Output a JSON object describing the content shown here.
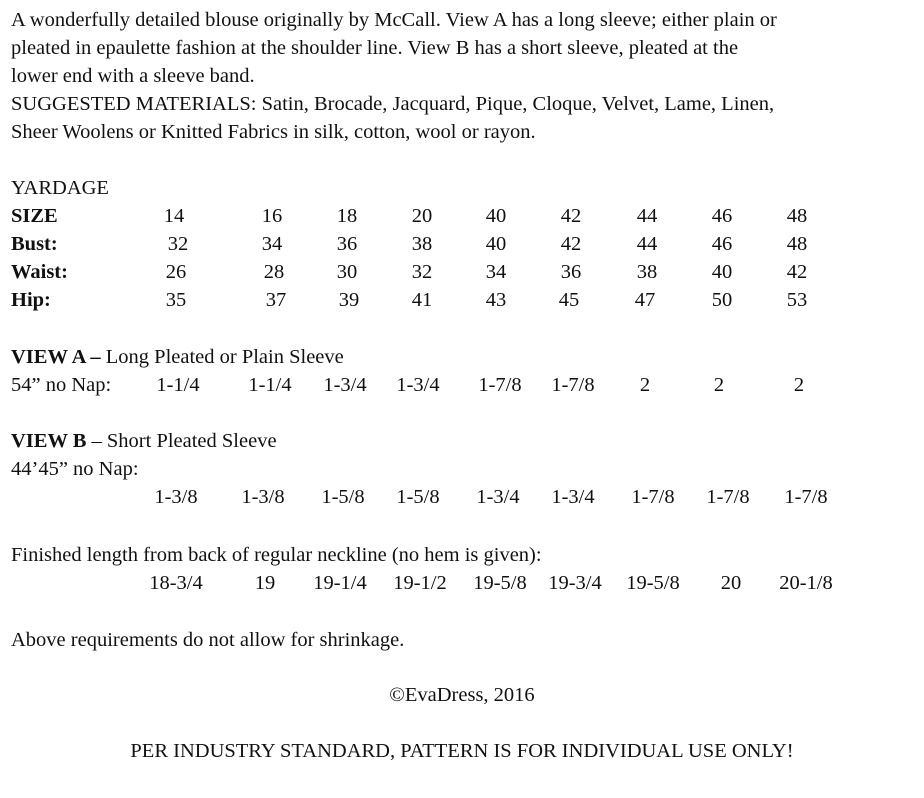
{
  "intro": {
    "line1": "A wonderfully detailed blouse originally by McCall.  View A has a long sleeve; either plain or",
    "line2": "pleated in epaulette fashion at the shoulder line.  View B has a short sleeve, pleated at the",
    "line3": "lower end with a sleeve band.",
    "line4": "SUGGESTED MATERIALS: Satin, Brocade, Jacquard, Pique, Cloque, Velvet, Lame, Linen,",
    "line5": "Sheer Woolens or Knitted Fabrics in silk, cotton, wool or rayon."
  },
  "yardage": {
    "heading": "YARDAGE",
    "rows": [
      {
        "label": "SIZE",
        "values": [
          "14",
          "16",
          "18",
          "20",
          "40",
          "42",
          "44",
          "46",
          "48"
        ]
      },
      {
        "label": "Bust:",
        "values": [
          "32",
          "34",
          "36",
          "38",
          "40",
          "42",
          "44",
          "46",
          "48"
        ]
      },
      {
        "label": "Waist:",
        "values": [
          "26",
          "28",
          "30",
          "32",
          "34",
          "36",
          "38",
          "40",
          "42"
        ]
      },
      {
        "label": "Hip:",
        "values": [
          "35",
          "37",
          "39",
          "41",
          "43",
          "45",
          "47",
          "50",
          "53"
        ]
      }
    ]
  },
  "view_a": {
    "title_bold": "VIEW A –",
    "title_rest": " Long Pleated or Plain Sleeve",
    "fabric_label": "54” no Nap:",
    "values": [
      "1-1/4",
      "1-1/4",
      "1-3/4",
      "1-3/4",
      "1-7/8",
      "1-7/8",
      "2",
      "2",
      "2"
    ]
  },
  "view_b": {
    "title_bold": "VIEW B",
    "title_rest": " – Short Pleated Sleeve",
    "fabric_label": "44’45” no Nap:",
    "values": [
      "1-3/8",
      "1-3/8",
      "1-5/8",
      "1-5/8",
      "1-3/4",
      "1-3/4",
      "1-7/8",
      "1-7/8",
      "1-7/8"
    ]
  },
  "finished_length": {
    "label": "Finished length from back of regular neckline (no hem is given):",
    "values": [
      "18-3/4",
      "19",
      "19-1/4",
      "19-1/2",
      "19-5/8",
      "19-3/4",
      "19-5/8",
      "20",
      "20-1/8"
    ]
  },
  "shrinkage_note": "Above requirements do not allow for shrinkage.",
  "copyright": "©EvaDress, 2016",
  "footer_notice": "PER INDUSTRY STANDARD, PATTERN IS FOR INDIVIDUAL USE ONLY!"
}
